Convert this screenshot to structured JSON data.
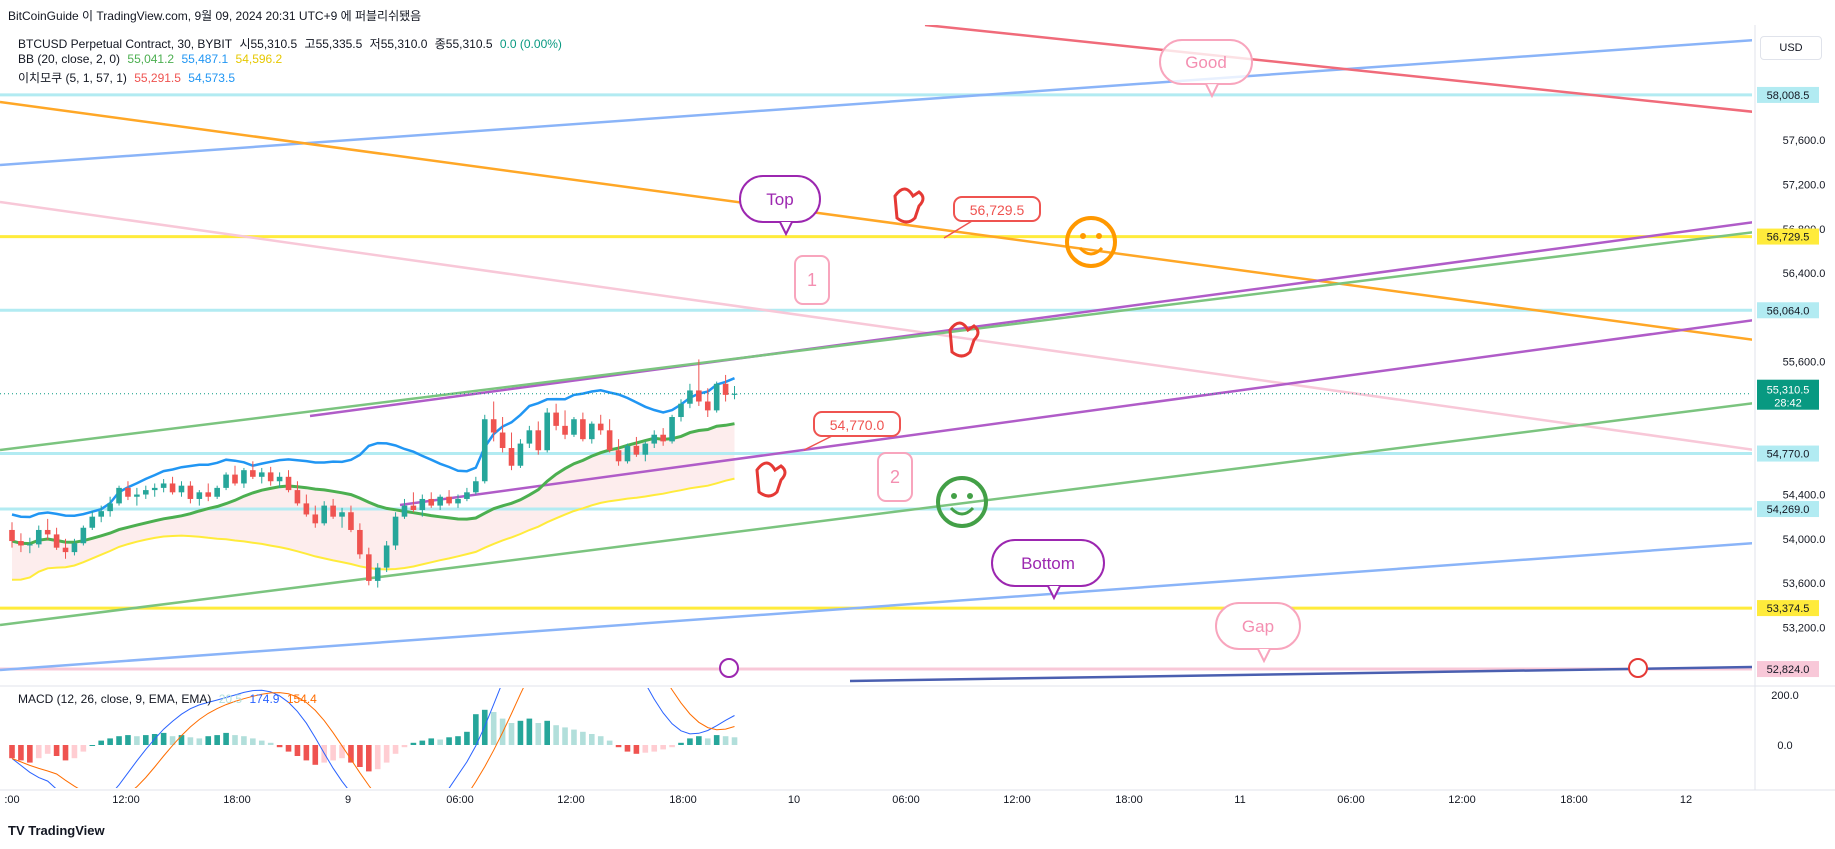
{
  "header": {
    "publisher_line": "BitCoinGuide 이 TradingView.com, 9월 09, 2024 20:31 UTC+9 에 퍼블리쉬됐음",
    "symbol": "BTCUSD Perpetual Contract, 30, BYBIT",
    "open": "시55,310.5",
    "high": "고55,335.5",
    "low": "저55,310.0",
    "close": "종55,310.5",
    "change": "0.0 (0.00%)",
    "bb_label": "BB (20, close, 2, 0)",
    "bb_vals": [
      "55,041.2",
      "55,487.1",
      "54,596.2"
    ],
    "ichimoku_label": "이치모쿠 (5, 1, 57, 1)",
    "ichimoku_vals": [
      "55,291.5",
      "54,573.5"
    ],
    "macd_label": "MACD (12, 26, close, 9, EMA, EMA)",
    "macd_vals": [
      "20.5",
      "174.9",
      "154.4"
    ]
  },
  "currency": "USD",
  "footer": "TradingView",
  "colors": {
    "up": "#26a69a",
    "down": "#ef5350",
    "bb_basis": "#4caf50",
    "bb_upper": "#2196f3",
    "span_a": "#ffeb3b",
    "price_tag": "#089981",
    "blue_line": "#8ab4f8",
    "orange_line": "#ffa726",
    "red_line": "#f06b7a",
    "purple_line": "#b05cc8",
    "green_line": "#7bc47f",
    "pink_line": "#f8c8d8",
    "hline_cyan": "#b2ebf2",
    "hline_yellow": "#ffeb3b",
    "hline_pink": "#f8c8d8"
  },
  "chart_data": {
    "type": "candlestick",
    "title": "BTCUSD Perpetual Contract, 30, BYBIT",
    "x_ticks": [
      ":00",
      "12:00",
      "18:00",
      "9",
      "06:00",
      "12:00",
      "18:00",
      "10",
      "06:00",
      "12:00",
      "18:00",
      "11",
      "06:00",
      "12:00",
      "18:00",
      "12"
    ],
    "y_ticks": [
      57600,
      57200,
      56800,
      56400,
      55600,
      54400,
      54000,
      53600,
      53200
    ],
    "ylim": [
      52680,
      58640
    ],
    "last_price": "55,310.5",
    "countdown": "28:42",
    "level_labels": [
      {
        "value": 58008.5,
        "label": "58,008.5",
        "color": "#b2ebf2"
      },
      {
        "value": 56729.5,
        "label": "56,729.5",
        "color": "#ffeb3b"
      },
      {
        "value": 56064.0,
        "label": "56,064.0",
        "color": "#b2ebf2"
      },
      {
        "value": 54770.0,
        "label": "54,770.0",
        "color": "#b2ebf2"
      },
      {
        "value": 54269.0,
        "label": "54,269.0",
        "color": "#b2ebf2"
      },
      {
        "value": 53374.5,
        "label": "53,374.5",
        "color": "#ffeb3b"
      },
      {
        "value": 52824.0,
        "label": "52,824.0",
        "color": "#f8c8d8"
      }
    ],
    "macd_ticks": [
      "200.0",
      "0.0"
    ],
    "candles": [
      [
        54080,
        54150,
        53920,
        53980
      ],
      [
        53980,
        54050,
        53880,
        53940
      ],
      [
        53940,
        54010,
        53870,
        53950
      ],
      [
        53950,
        54120,
        53920,
        54080
      ],
      [
        54080,
        54180,
        53990,
        54040
      ],
      [
        54040,
        54100,
        53900,
        53920
      ],
      [
        53920,
        54000,
        53820,
        53880
      ],
      [
        53880,
        54000,
        53850,
        53960
      ],
      [
        53960,
        54120,
        53940,
        54100
      ],
      [
        54100,
        54250,
        54080,
        54200
      ],
      [
        54200,
        54300,
        54150,
        54250
      ],
      [
        54250,
        54380,
        54200,
        54320
      ],
      [
        54320,
        54480,
        54300,
        54460
      ],
      [
        54460,
        54520,
        54350,
        54380
      ],
      [
        54380,
        54460,
        54300,
        54400
      ],
      [
        54400,
        54480,
        54360,
        54440
      ],
      [
        54440,
        54500,
        54380,
        54460
      ],
      [
        54460,
        54540,
        54420,
        54500
      ],
      [
        54500,
        54560,
        54400,
        54420
      ],
      [
        54420,
        54520,
        54380,
        54480
      ],
      [
        54480,
        54520,
        54320,
        54360
      ],
      [
        54360,
        54440,
        54300,
        54420
      ],
      [
        54420,
        54500,
        54340,
        54380
      ],
      [
        54380,
        54480,
        54360,
        54460
      ],
      [
        54460,
        54600,
        54440,
        54580
      ],
      [
        54580,
        54660,
        54480,
        54500
      ],
      [
        54500,
        54640,
        54460,
        54620
      ],
      [
        54620,
        54700,
        54540,
        54560
      ],
      [
        54560,
        54640,
        54500,
        54600
      ],
      [
        54600,
        54650,
        54480,
        54520
      ],
      [
        54520,
        54600,
        54460,
        54560
      ],
      [
        54560,
        54620,
        54420,
        54440
      ],
      [
        54440,
        54520,
        54300,
        54320
      ],
      [
        54320,
        54400,
        54200,
        54220
      ],
      [
        54220,
        54300,
        54100,
        54140
      ],
      [
        54140,
        54340,
        54120,
        54300
      ],
      [
        54300,
        54360,
        54180,
        54200
      ],
      [
        54200,
        54280,
        54100,
        54240
      ],
      [
        54240,
        54300,
        54060,
        54080
      ],
      [
        54080,
        54140,
        53820,
        53860
      ],
      [
        53860,
        53920,
        53580,
        53620
      ],
      [
        53620,
        53780,
        53560,
        53740
      ],
      [
        53740,
        53980,
        53700,
        53940
      ],
      [
        53940,
        54240,
        53900,
        54200
      ],
      [
        54200,
        54360,
        54180,
        54300
      ],
      [
        54300,
        54420,
        54240,
        54260
      ],
      [
        54260,
        54400,
        54200,
        54360
      ],
      [
        54360,
        54420,
        54280,
        54300
      ],
      [
        54300,
        54400,
        54260,
        54380
      ],
      [
        54380,
        54440,
        54300,
        54320
      ],
      [
        54320,
        54400,
        54280,
        54360
      ],
      [
        54360,
        54460,
        54340,
        54420
      ],
      [
        54420,
        54560,
        54400,
        54520
      ],
      [
        54520,
        55120,
        54500,
        55080
      ],
      [
        55080,
        55240,
        54880,
        54960
      ],
      [
        54960,
        55100,
        54780,
        54820
      ],
      [
        54820,
        54960,
        54620,
        54660
      ],
      [
        54660,
        54900,
        54640,
        54860
      ],
      [
        54860,
        55020,
        54820,
        54980
      ],
      [
        54980,
        55060,
        54760,
        54800
      ],
      [
        54800,
        55180,
        54780,
        55140
      ],
      [
        55140,
        55220,
        54980,
        55020
      ],
      [
        55020,
        55160,
        54900,
        54940
      ],
      [
        54940,
        55100,
        54920,
        55080
      ],
      [
        55080,
        55140,
        54880,
        54900
      ],
      [
        54900,
        55060,
        54860,
        55040
      ],
      [
        55040,
        55120,
        54940,
        54980
      ],
      [
        54980,
        55080,
        54780,
        54800
      ],
      [
        54800,
        54900,
        54660,
        54700
      ],
      [
        54700,
        54860,
        54680,
        54840
      ],
      [
        54840,
        54920,
        54740,
        54760
      ],
      [
        54760,
        54880,
        54700,
        54860
      ],
      [
        54860,
        54980,
        54820,
        54940
      ],
      [
        54940,
        55000,
        54840,
        54880
      ],
      [
        54880,
        55120,
        54860,
        55100
      ],
      [
        55100,
        55260,
        55060,
        55220
      ],
      [
        55220,
        55400,
        55180,
        55340
      ],
      [
        55340,
        55620,
        55200,
        55240
      ],
      [
        55240,
        55360,
        55100,
        55160
      ],
      [
        55160,
        55420,
        55140,
        55400
      ],
      [
        55400,
        55480,
        55240,
        55300
      ],
      [
        55300,
        55380,
        55260,
        55310
      ]
    ],
    "macd_hist": [
      -60,
      -70,
      -80,
      -60,
      -40,
      -50,
      -70,
      -60,
      -30,
      0,
      20,
      30,
      40,
      45,
      40,
      45,
      50,
      55,
      40,
      45,
      35,
      30,
      40,
      45,
      55,
      45,
      40,
      30,
      20,
      10,
      -10,
      -30,
      -50,
      -70,
      -90,
      -80,
      -70,
      -60,
      -80,
      -100,
      -120,
      -110,
      -80,
      -40,
      -10,
      10,
      20,
      30,
      25,
      35,
      40,
      60,
      140,
      160,
      150,
      120,
      100,
      110,
      120,
      100,
      110,
      90,
      80,
      70,
      60,
      50,
      40,
      20,
      -10,
      -30,
      -40,
      -35,
      -30,
      -20,
      -10,
      10,
      30,
      40,
      30,
      45,
      40,
      35
    ]
  }
}
